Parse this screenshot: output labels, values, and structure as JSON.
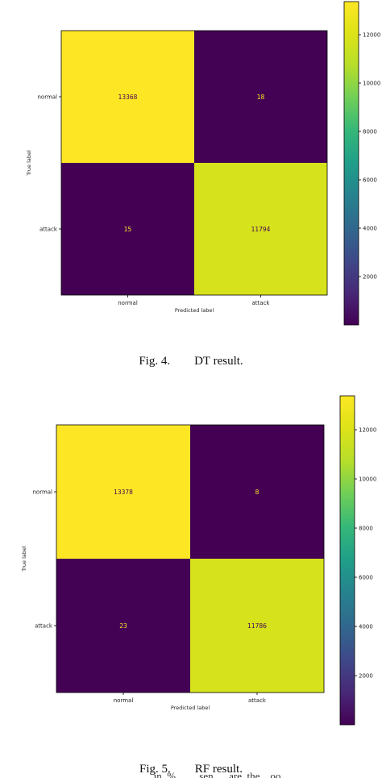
{
  "figures": [
    {
      "caption": "Fig. 4.        DT result."
    },
    {
      "caption": "Fig. 5.        RF result."
    }
  ],
  "chart_data": [
    {
      "type": "heatmap",
      "title": "",
      "xlabel": "Predicted label",
      "ylabel": "True label",
      "x_categories": [
        "normal",
        "attack"
      ],
      "y_categories": [
        "normal",
        "attack"
      ],
      "x_tick_labels": [
        "normal",
        "attack"
      ],
      "values": [
        [
          13368,
          18
        ],
        [
          15,
          11794
        ]
      ],
      "value_labels": [
        [
          "13368",
          "18"
        ],
        [
          "15",
          "11794"
        ]
      ],
      "colormap": "viridis",
      "colorbar": {
        "range": [
          0,
          13368
        ],
        "ticks": [
          2000,
          4000,
          6000,
          8000,
          10000,
          12000
        ]
      }
    },
    {
      "type": "heatmap",
      "title": "",
      "xlabel": "Predicted label",
      "ylabel": "True label",
      "x_categories": [
        "normal",
        "attack"
      ],
      "y_categories": [
        "normal",
        "attack"
      ],
      "x_tick_labels": [
        "normal",
        "attack"
      ],
      "values": [
        [
          13378,
          8
        ],
        [
          23,
          11786
        ]
      ],
      "value_labels": [
        [
          "13378",
          "8"
        ],
        [
          "23",
          "11786"
        ]
      ],
      "colormap": "viridis",
      "colorbar": {
        "range": [
          0,
          13378
        ],
        "ticks": [
          2000,
          4000,
          6000,
          8000,
          10000,
          12000
        ]
      }
    }
  ],
  "colors": {
    "viridis_low": "#440154",
    "viridis_high": "#fde725",
    "text_on_dark": "#fde725",
    "text_on_light": "#440154"
  },
  "footer_text": "                    in  %         sen      are  the    oo"
}
